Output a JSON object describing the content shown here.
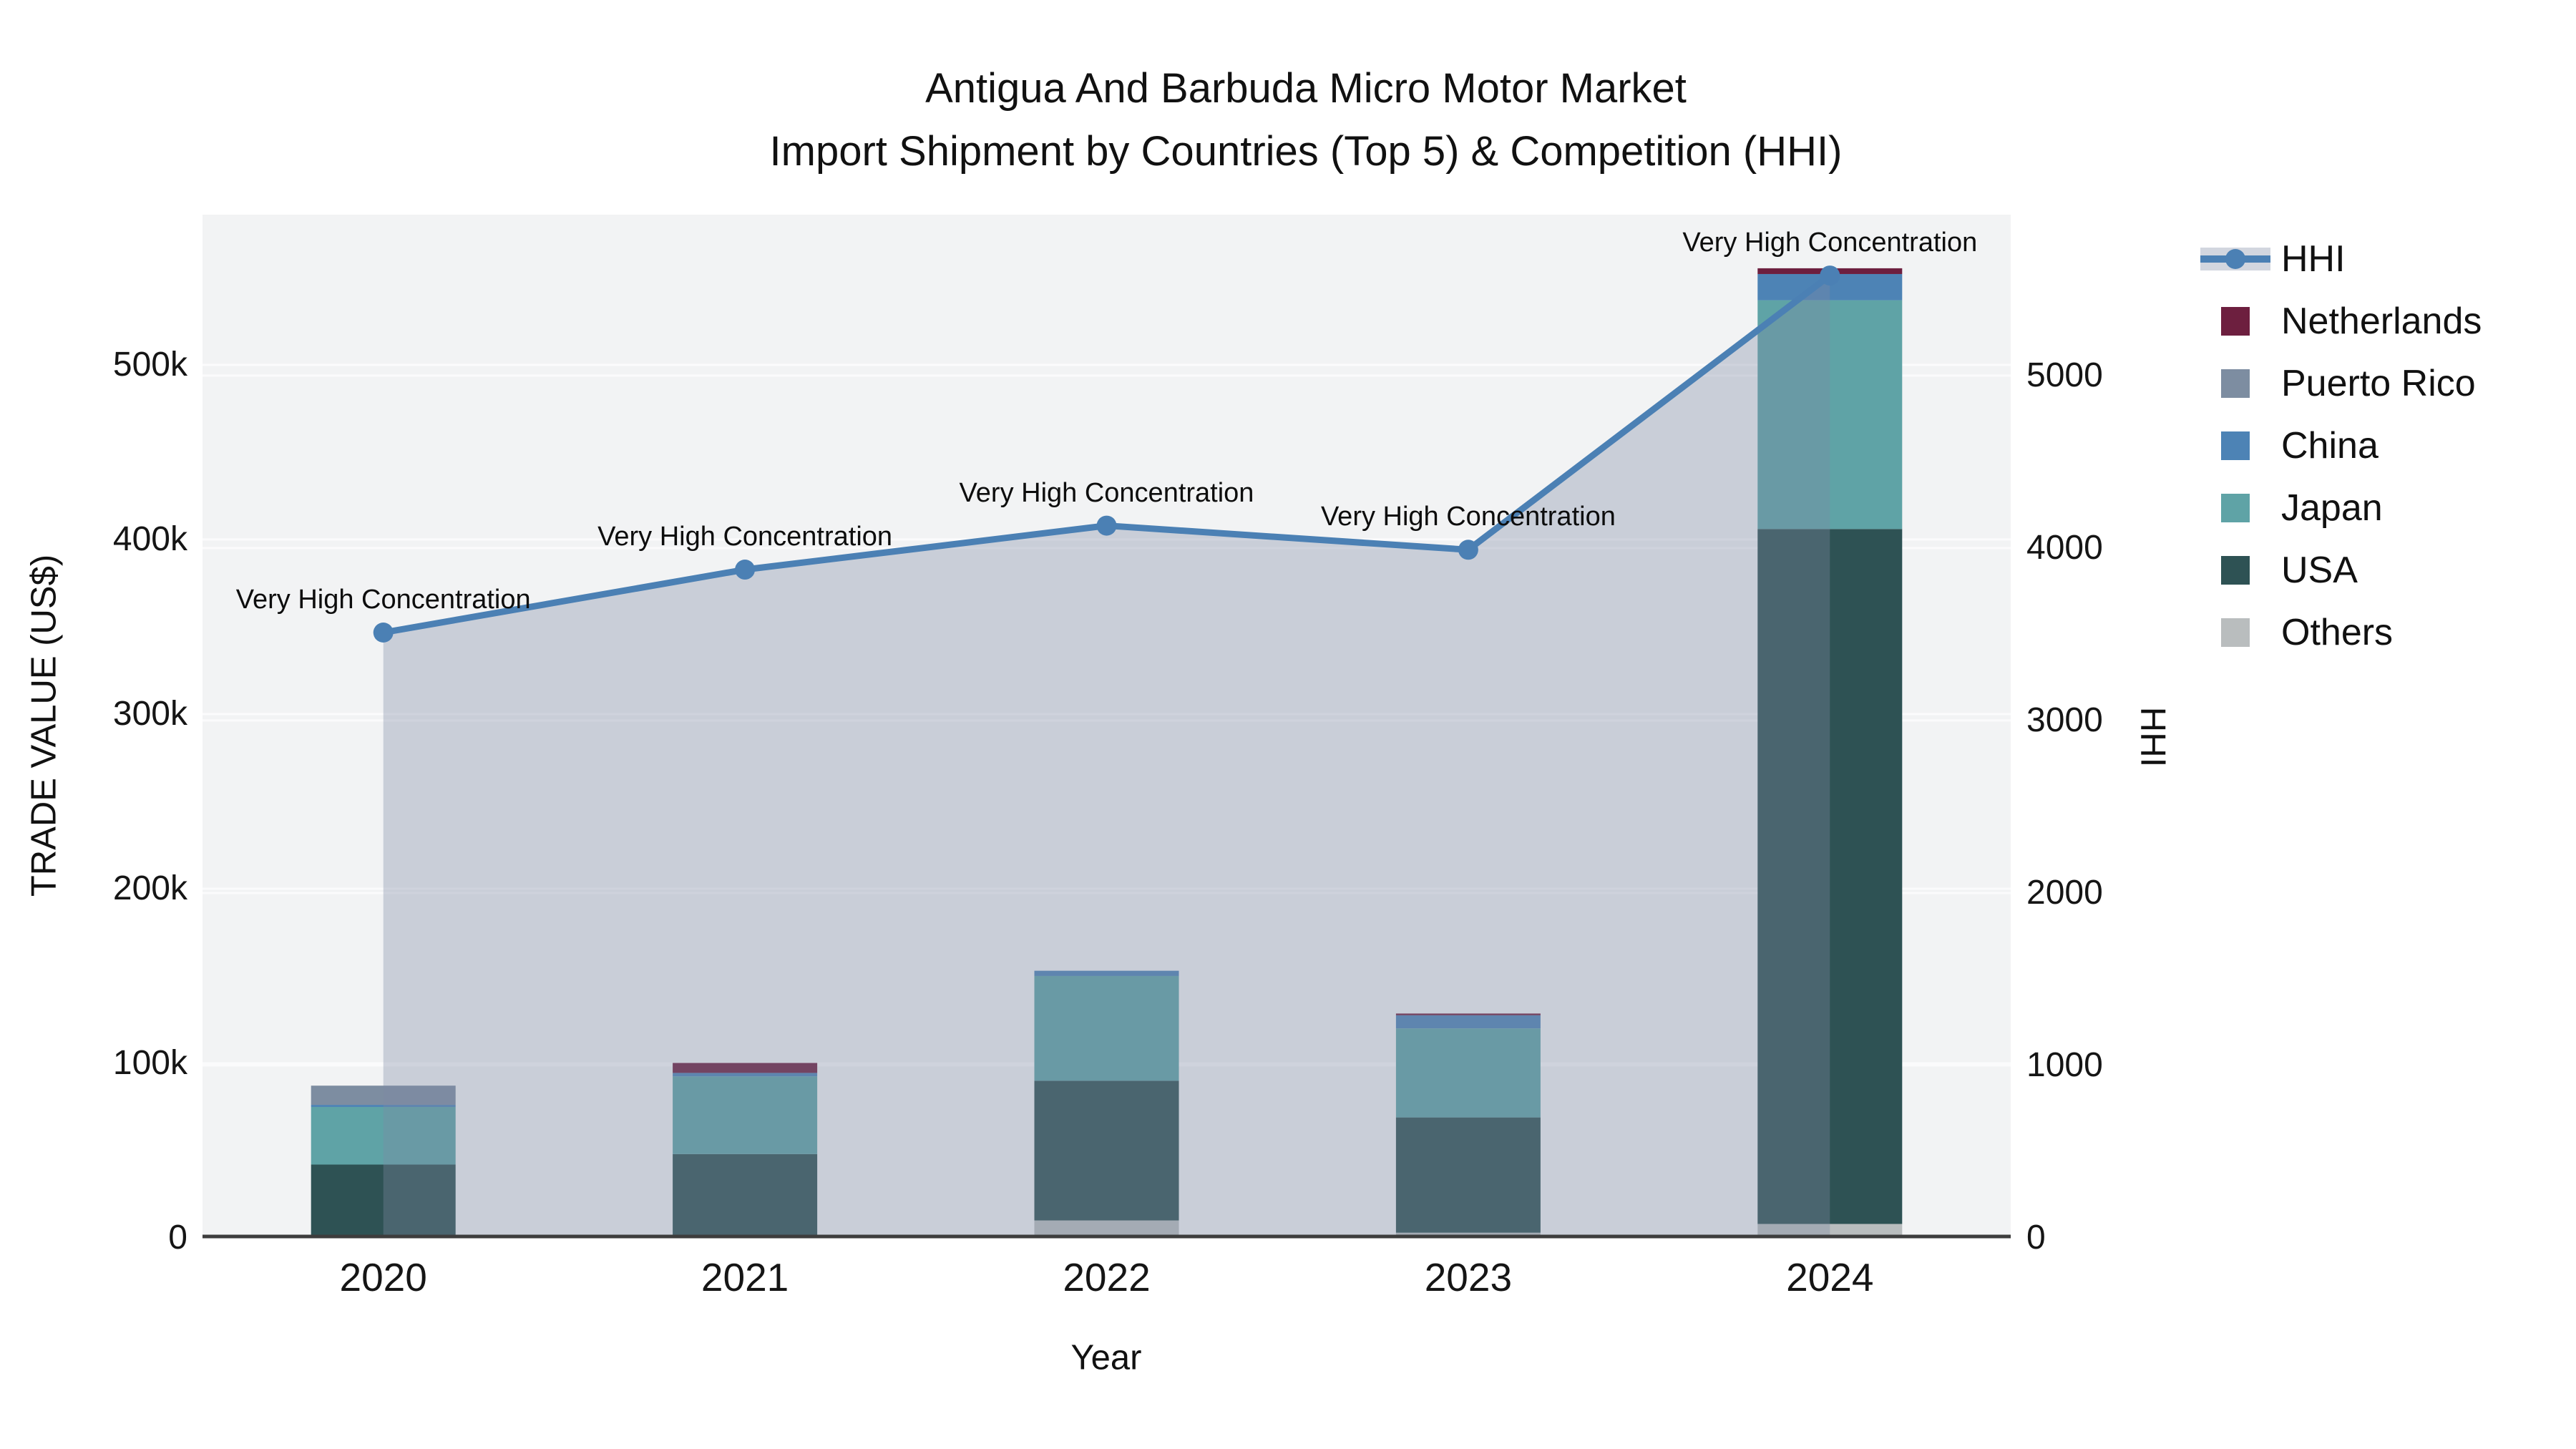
{
  "title": {
    "line1": "Antigua And Barbuda Micro Motor Market",
    "line2": "Import Shipment by Countries (Top 5) & Competition (HHI)"
  },
  "axes": {
    "left_title": "TRADE VALUE (US$)",
    "right_title": "HHI",
    "x_title": "Year"
  },
  "colors": {
    "plot_bg": "#f2f3f4",
    "gridline": "#fbfbfc",
    "axis_line": "#3d3d3d",
    "hhi_line": "#4b80b4",
    "area_fill": "rgba(125,138,164,0.35)",
    "others": "#b9bdbe",
    "usa": "#2e5254",
    "japan": "#5fa3a6",
    "china": "#4d83b5",
    "puerto_rico": "#7d8da1",
    "netherlands": "#6d1f3f"
  },
  "chart_data": {
    "type": "bar",
    "stacked": true,
    "categories": [
      "2020",
      "2021",
      "2022",
      "2023",
      "2024"
    ],
    "series": [
      {
        "name": "Others",
        "color": "#b9bdbe",
        "values": [
          0,
          0,
          10000,
          3000,
          8000
        ]
      },
      {
        "name": "USA",
        "color": "#2e5254",
        "values": [
          42000,
          48000,
          80000,
          66000,
          398000
        ]
      },
      {
        "name": "Japan",
        "color": "#5fa3a6",
        "values": [
          33000,
          44500,
          60000,
          51000,
          131000
        ]
      },
      {
        "name": "China",
        "color": "#4d83b5",
        "values": [
          1200,
          2000,
          3000,
          7500,
          15000
        ]
      },
      {
        "name": "Puerto Rico",
        "color": "#7d8da1",
        "values": [
          11000,
          0,
          0,
          0,
          0
        ]
      },
      {
        "name": "Netherlands",
        "color": "#6d1f3f",
        "values": [
          0,
          5700,
          0,
          1000,
          3300
        ]
      }
    ],
    "line_series": {
      "name": "HHI",
      "color": "#4b80b4",
      "area_color": "rgba(125,138,164,0.35)",
      "values": [
        3510,
        3875,
        4130,
        3990,
        5580
      ]
    },
    "annotations": [
      "Very High Concentration",
      "Very High Concentration",
      "Very High Concentration",
      "Very High Concentration",
      "Very High Concentration"
    ],
    "left_axis": {
      "tick_labels": [
        "0",
        "100k",
        "200k",
        "300k",
        "400k",
        "500k"
      ],
      "tick_values": [
        0,
        100000,
        200000,
        300000,
        400000,
        500000
      ],
      "max": 586000
    },
    "right_axis": {
      "tick_labels": [
        "0",
        "1000",
        "2000",
        "3000",
        "4000",
        "5000"
      ],
      "tick_values": [
        0,
        1000,
        2000,
        3000,
        4000,
        5000
      ],
      "max": 5933
    },
    "title": "Antigua And Barbuda Micro Motor Market Import Shipment by Countries (Top 5) & Competition (HHI)",
    "xlabel": "Year",
    "ylabel": "TRADE VALUE (US$)",
    "ylabel_right": "HHI",
    "grid": true,
    "legend_position": "right"
  },
  "legend": {
    "items": [
      {
        "label": "HHI",
        "type": "line",
        "color": "#4b80b4"
      },
      {
        "label": "Netherlands",
        "type": "square",
        "color": "#6d1f3f"
      },
      {
        "label": "Puerto Rico",
        "type": "square",
        "color": "#7d8da1"
      },
      {
        "label": "China",
        "type": "square",
        "color": "#4d83b5"
      },
      {
        "label": "Japan",
        "type": "square",
        "color": "#5fa3a6"
      },
      {
        "label": "USA",
        "type": "square",
        "color": "#2e5254"
      },
      {
        "label": "Others",
        "type": "square",
        "color": "#b9bdbe"
      }
    ]
  }
}
